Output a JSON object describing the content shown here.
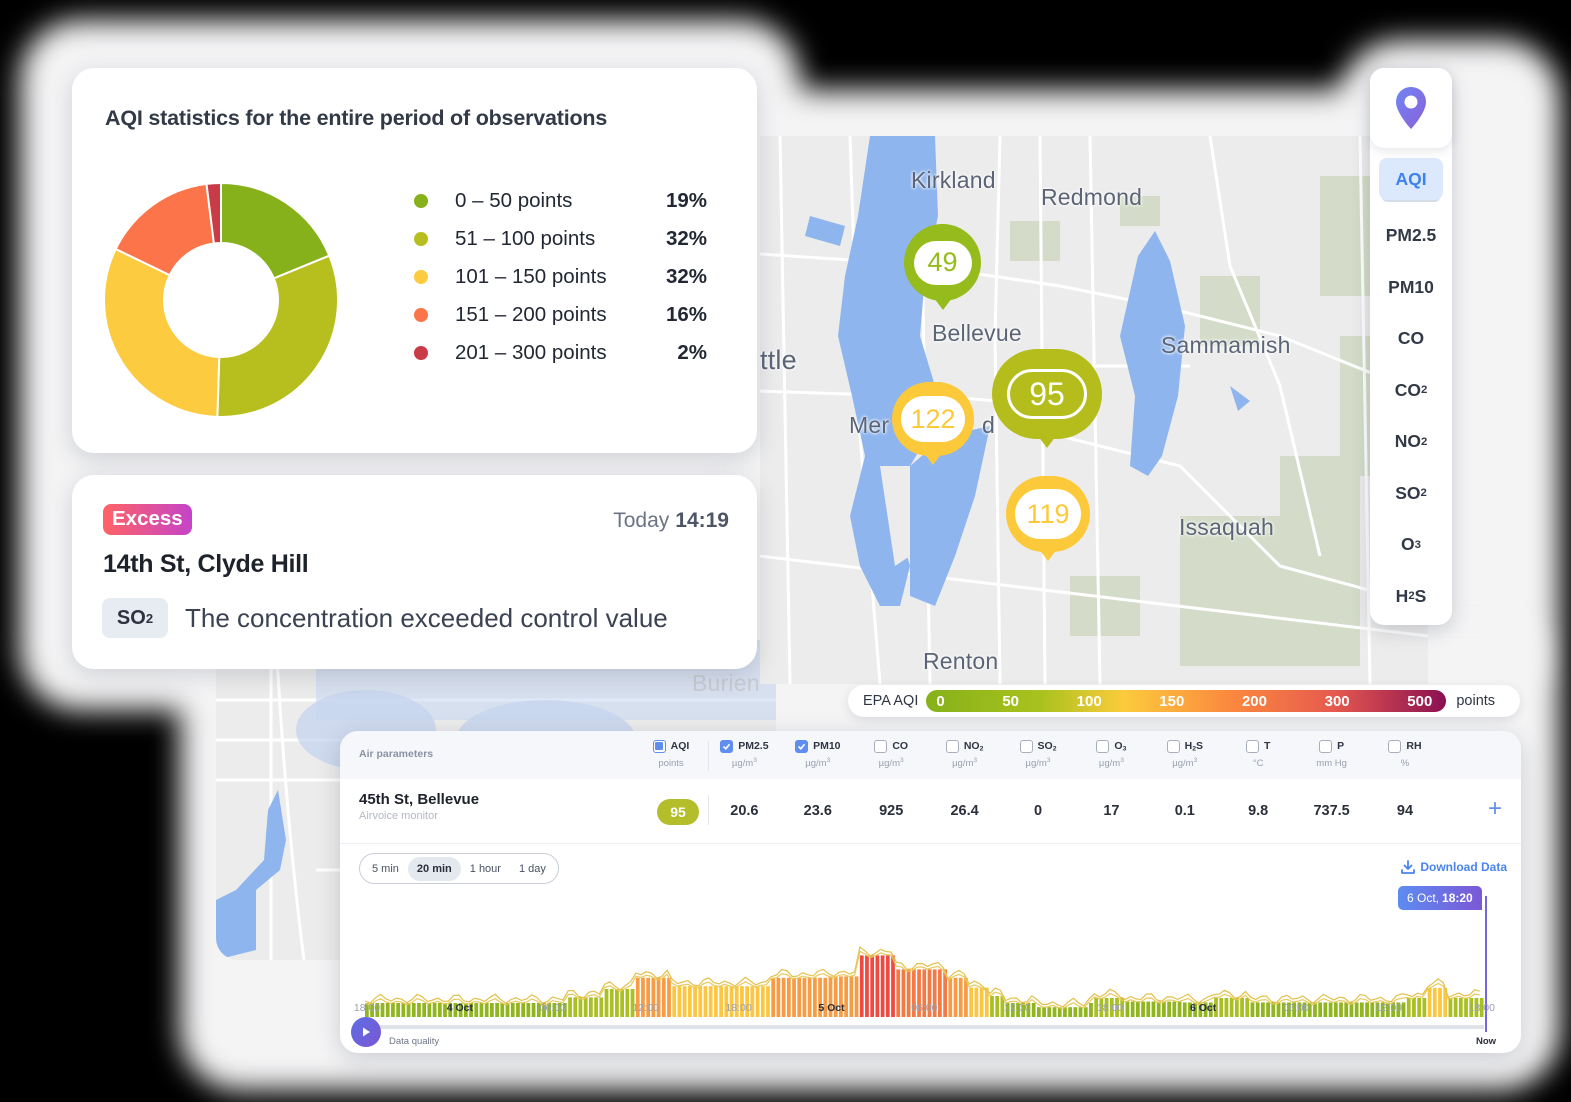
{
  "stats_card": {
    "title": "AQI statistics for the entire period of observations",
    "legend": [
      {
        "label": "0 – 50 points",
        "pct": "19%",
        "color": "#86b11a"
      },
      {
        "label": "51 – 100 points",
        "pct": "32%",
        "color": "#b7bf1f"
      },
      {
        "label": "101 – 150 points",
        "pct": "32%",
        "color": "#fdcb3f"
      },
      {
        "label": "151 – 200 points",
        "pct": "16%",
        "color": "#fc744a"
      },
      {
        "label": "201 – 300 points",
        "pct": "2%",
        "color": "#c93b47"
      }
    ]
  },
  "chart_data": {
    "type": "pie",
    "title": "AQI statistics for the entire period of observations",
    "categories": [
      "0 – 50 points",
      "51 – 100 points",
      "101 – 150 points",
      "151 – 200 points",
      "201 – 300 points"
    ],
    "values": [
      19,
      32,
      32,
      16,
      2
    ],
    "unit": "%",
    "donut": true,
    "legend_position": "right"
  },
  "alert_card": {
    "badge": "Excess",
    "time_prefix": "Today",
    "time": "14:19",
    "place": "14th St, Clyde Hill",
    "pollutant_main": "SO",
    "pollutant_sub": "2",
    "message": "The concentration exceeded control value"
  },
  "map": {
    "labels": [
      {
        "text": "Kirkland"
      },
      {
        "text": "Redmond"
      },
      {
        "text": "Bellevue"
      },
      {
        "text": "Sammamish"
      },
      {
        "text": "ttle"
      },
      {
        "text": "Mer"
      },
      {
        "text": "d"
      },
      {
        "text": "Issaquah"
      },
      {
        "text": "Renton"
      },
      {
        "text": "Burien"
      }
    ],
    "markers": [
      {
        "value": "49",
        "color": "#96bb1c"
      },
      {
        "value": "122",
        "color": "#fcc93a"
      },
      {
        "value": "95",
        "color": "#b4bd1c"
      },
      {
        "value": "119",
        "color": "#fcc93a"
      }
    ]
  },
  "sidebar": {
    "pin_icon": "location-pin-icon",
    "items": [
      {
        "main": "AQI",
        "sub": ""
      },
      {
        "main": "PM2.5",
        "sub": ""
      },
      {
        "main": "PM10",
        "sub": ""
      },
      {
        "main": "CO",
        "sub": ""
      },
      {
        "main": "CO",
        "sub": "2"
      },
      {
        "main": "NO",
        "sub": "2"
      },
      {
        "main": "SO",
        "sub": "2"
      },
      {
        "main": "O",
        "sub": "3"
      },
      {
        "main": "H",
        "sub": "2",
        "tail": "S"
      }
    ],
    "active": "AQI"
  },
  "scale": {
    "name": "EPA AQI",
    "ticks": [
      "0",
      "50",
      "100",
      "150",
      "200",
      "300",
      "500"
    ],
    "unit": "points"
  },
  "panel": {
    "header_label": "Air parameters",
    "columns": [
      {
        "name": "AQI",
        "sub": "",
        "tail": "",
        "unit": "points",
        "unit_sup": "",
        "state": "indeterminate"
      },
      {
        "name": "PM2.5",
        "sub": "",
        "tail": "",
        "unit": "µg/m",
        "unit_sup": "3",
        "state": "checked"
      },
      {
        "name": "PM10",
        "sub": "",
        "tail": "",
        "unit": "µg/m",
        "unit_sup": "3",
        "state": "checked"
      },
      {
        "name": "CO",
        "sub": "",
        "tail": "",
        "unit": "µg/m",
        "unit_sup": "3",
        "state": "unchecked"
      },
      {
        "name": "NO",
        "sub": "2",
        "tail": "",
        "unit": "µg/m",
        "unit_sup": "3",
        "state": "unchecked"
      },
      {
        "name": "SO",
        "sub": "2",
        "tail": "",
        "unit": "µg/m",
        "unit_sup": "3",
        "state": "unchecked"
      },
      {
        "name": "O",
        "sub": "3",
        "tail": "",
        "unit": "µg/m",
        "unit_sup": "3",
        "state": "unchecked"
      },
      {
        "name": "H",
        "sub": "2",
        "tail": "S",
        "unit": "µg/m",
        "unit_sup": "3",
        "state": "unchecked"
      },
      {
        "name": "T",
        "sub": "",
        "tail": "",
        "unit": "°C",
        "unit_sup": "",
        "state": "unchecked"
      },
      {
        "name": "P",
        "sub": "",
        "tail": "",
        "unit": "mm Hg",
        "unit_sup": "",
        "state": "unchecked"
      },
      {
        "name": "RH",
        "sub": "",
        "tail": "",
        "unit": "%",
        "unit_sup": "",
        "state": "unchecked"
      }
    ],
    "row": {
      "place": "45th St, Bellevue",
      "device": "Airvoice monitor",
      "aqi": "95",
      "values": [
        "20.6",
        "23.6",
        "925",
        "26.4",
        "0",
        "17",
        "0.1",
        "9.8",
        "737.5",
        "94"
      ],
      "add_label": "+"
    },
    "intervals": [
      "5 min",
      "20 min",
      "1 hour",
      "1 day"
    ],
    "active_interval": "20 min",
    "download_label": "Download Data",
    "cursor_date": "6 Oct,",
    "cursor_time": "18:20",
    "x_ticks": [
      {
        "label": "18:00",
        "bold": false
      },
      {
        "label": "4 Oct",
        "bold": true
      },
      {
        "label": "06:00",
        "bold": false
      },
      {
        "label": "12:00",
        "bold": false
      },
      {
        "label": "18:00",
        "bold": false
      },
      {
        "label": "5 Oct",
        "bold": true
      },
      {
        "label": "06:00",
        "bold": false
      },
      {
        "label": "12:00",
        "bold": false
      },
      {
        "label": "18:00",
        "bold": false
      },
      {
        "label": "6 Oct",
        "bold": true
      },
      {
        "label": "06:00",
        "bold": false
      },
      {
        "label": "12:00",
        "bold": false
      },
      {
        "label": "18:00",
        "bold": false
      }
    ],
    "data_quality_label": "Data quality",
    "now_label": "Now"
  }
}
